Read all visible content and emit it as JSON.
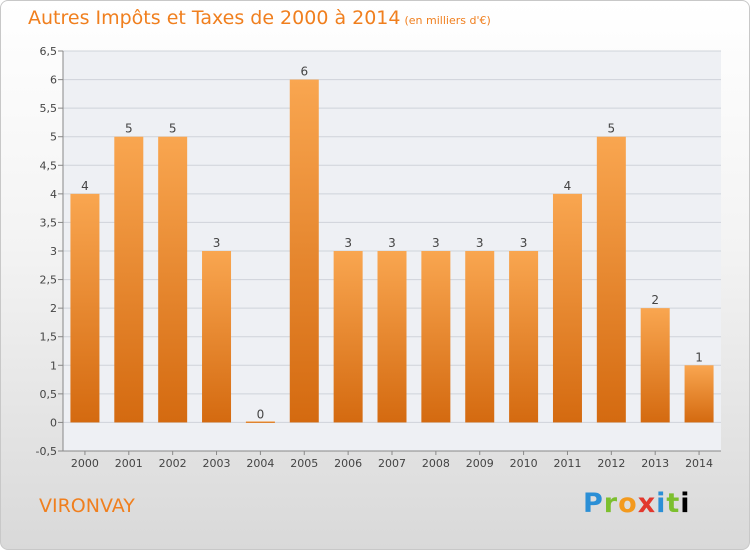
{
  "chart_data": {
    "type": "bar",
    "title": "Autres Impôts et Taxes de 2000 à 2014",
    "subtitle": "(en milliers d'€)",
    "categories": [
      "2000",
      "2001",
      "2002",
      "2003",
      "2004",
      "2005",
      "2006",
      "2007",
      "2008",
      "2009",
      "2010",
      "2011",
      "2012",
      "2013",
      "2014"
    ],
    "values": [
      4,
      5,
      5,
      3,
      0,
      6,
      3,
      3,
      3,
      3,
      3,
      4,
      5,
      2,
      1
    ],
    "data_labels": [
      "4",
      "5",
      "5",
      "3",
      "0",
      "6",
      "3",
      "3",
      "3",
      "3",
      "3",
      "4",
      "5",
      "2",
      "1"
    ],
    "y_ticks": [
      "-0,5",
      "0",
      "0,5",
      "1",
      "1,5",
      "2",
      "2,5",
      "3",
      "3,5",
      "4",
      "4,5",
      "5",
      "5,5",
      "6",
      "6,5"
    ],
    "ylim": [
      -0.5,
      6.5
    ],
    "grid": true,
    "bar_color": "#f08a24"
  },
  "footer": {
    "location": "VIRONVAY",
    "logo": "Proxiti"
  }
}
